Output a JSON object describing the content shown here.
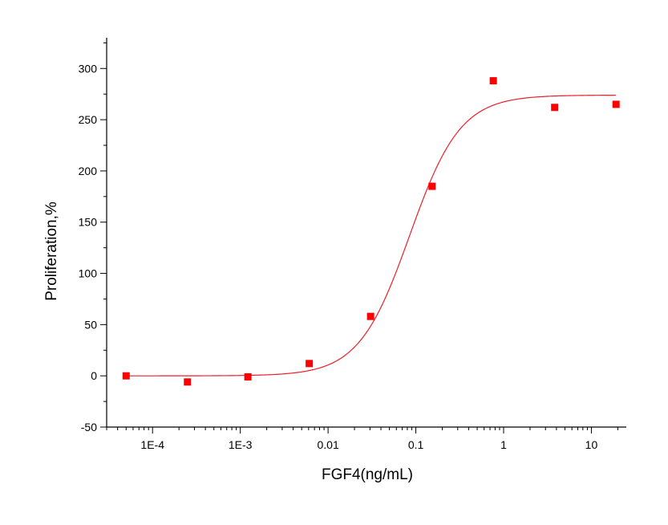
{
  "chart_data": {
    "type": "scatter",
    "title": "",
    "xlabel": "FGF4(ng/mL)",
    "ylabel": "Proliferation,%",
    "xscale": "log",
    "xlim": [
      3e-05,
      25
    ],
    "ylim": [
      -50,
      330
    ],
    "x_ticks": [
      0.0001,
      0.001,
      0.01,
      0.1,
      1,
      10
    ],
    "x_tick_labels": [
      "1E-4",
      "1E-3",
      "0.01",
      "0.1",
      "1",
      "10"
    ],
    "y_ticks": [
      -50,
      0,
      50,
      100,
      150,
      200,
      250,
      300
    ],
    "y_tick_labels": [
      "-50",
      "0",
      "50",
      "100",
      "150",
      "200",
      "250",
      "300"
    ],
    "grid": false,
    "legend": "none",
    "series": [
      {
        "kind": "points",
        "marker": "square",
        "color": "#ff0000",
        "x": [
          5e-05,
          0.00025,
          0.00122,
          0.0061,
          0.0305,
          0.153,
          0.763,
          3.82,
          19.1
        ],
        "y": [
          0,
          -6,
          -1,
          12,
          58,
          185,
          288,
          262,
          265
        ]
      },
      {
        "kind": "fit",
        "model": "4PL",
        "color": "#e8202a",
        "bottom": 0,
        "top": 274,
        "ec50": 0.085,
        "hill": 1.5
      }
    ]
  }
}
